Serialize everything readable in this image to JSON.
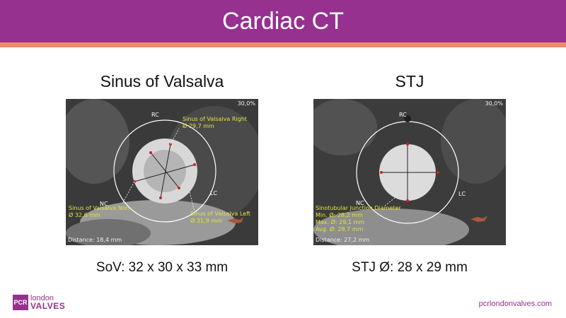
{
  "slide": {
    "title": "Cardiac CT",
    "colors": {
      "header": "#96318f",
      "stripe": "#f08a6b",
      "annotation": "#e6e23a"
    }
  },
  "left_panel": {
    "title": "Sinus of Valsalva",
    "caption": "SoV: 32 x 30 x 33 mm",
    "image": {
      "window_level": "30,0%",
      "orientation_labels": {
        "rc": "RC",
        "lc": "LC",
        "nc": "NC"
      },
      "annotations": {
        "right": {
          "name": "Sinus of Valsalva Right",
          "value": "Ø 29,7 mm"
        },
        "non": {
          "name": "Sinus of Valsalva Non",
          "value": "Ø 32,6 mm"
        },
        "left": {
          "name": "Sinus of Valsalva Left",
          "value": "Ø 31,9 mm"
        }
      },
      "distance": "Distance: 18,4 mm"
    }
  },
  "right_panel": {
    "title": "STJ",
    "caption": "STJ Ø: 28 x 29 mm",
    "image": {
      "window_level": "30,0%",
      "orientation_labels": {
        "rc": "RC",
        "lc": "LC",
        "nc": "NC"
      },
      "annotations": {
        "name": "Sinotubular Junction Diameter",
        "min": "Min. Ø: 28,2 mm",
        "max": "Max. Ø: 29,1 mm",
        "avg": "Avg. Ø: 28,7 mm"
      },
      "distance": "Distance: 27,2 mm"
    }
  },
  "footer": {
    "logo_badge": "PCR",
    "logo_line1": "london",
    "logo_line2": "VALVES",
    "url": "pcrlondonvalves.com"
  }
}
